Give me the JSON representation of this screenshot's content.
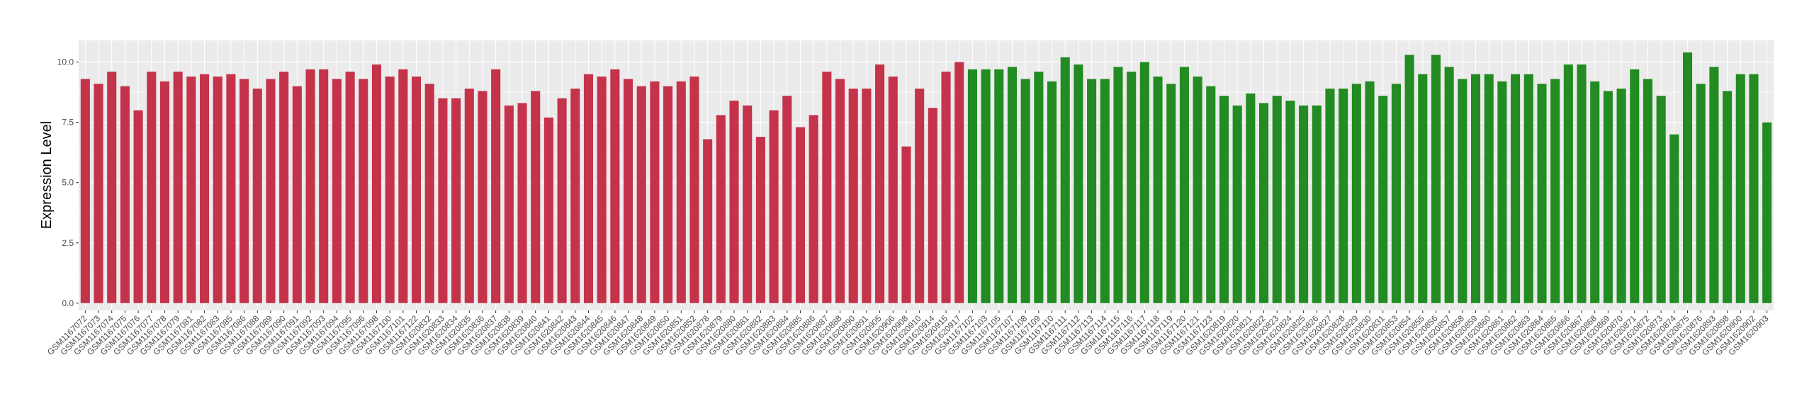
{
  "chart_data": {
    "type": "bar",
    "y_label": "Expression Level",
    "categories": [
      "GSM1167072",
      "GSM1167073",
      "GSM1167074",
      "GSM1167075",
      "GSM1167076",
      "GSM1167077",
      "GSM1167078",
      "GSM1167079",
      "GSM1167081",
      "GSM1167082",
      "GSM1167083",
      "GSM1167085",
      "GSM1167086",
      "GSM1167088",
      "GSM1167089",
      "GSM1167090",
      "GSM1167091",
      "GSM1167092",
      "GSM1167093",
      "GSM1167094",
      "GSM1167095",
      "GSM1167096",
      "GSM1167098",
      "GSM1167100",
      "GSM1167101",
      "GSM1167122",
      "GSM1620832",
      "GSM1620833",
      "GSM1620834",
      "GSM1620835",
      "GSM1620836",
      "GSM1620837",
      "GSM1620838",
      "GSM1620839",
      "GSM1620840",
      "GSM1620841",
      "GSM1620842",
      "GSM1620843",
      "GSM1620844",
      "GSM1620845",
      "GSM1620846",
      "GSM1620847",
      "GSM1620848",
      "GSM1620849",
      "GSM1620850",
      "GSM1620851",
      "GSM1620852",
      "GSM1620878",
      "GSM1620879",
      "GSM1620880",
      "GSM1620881",
      "GSM1620882",
      "GSM1620883",
      "GSM1620884",
      "GSM1620885",
      "GSM1620886",
      "GSM1620887",
      "GSM1620888",
      "GSM1620890",
      "GSM1620891",
      "GSM1620905",
      "GSM1620906",
      "GSM1620908",
      "GSM1620910",
      "GSM1620914",
      "GSM1620915",
      "GSM1620917",
      "GSM1167102",
      "GSM1167103",
      "GSM1167105",
      "GSM1167107",
      "GSM1167108",
      "GSM1167109",
      "GSM1167110",
      "GSM1167111",
      "GSM1167112",
      "GSM1167113",
      "GSM1167114",
      "GSM1167115",
      "GSM1167116",
      "GSM1167117",
      "GSM1167118",
      "GSM1167119",
      "GSM1167120",
      "GSM1167121",
      "GSM1167123",
      "GSM1620819",
      "GSM1620820",
      "GSM1620821",
      "GSM1620822",
      "GSM1620823",
      "GSM1620824",
      "GSM1620825",
      "GSM1620826",
      "GSM1620827",
      "GSM1620828",
      "GSM1620829",
      "GSM1620830",
      "GSM1620831",
      "GSM1620853",
      "GSM1620854",
      "GSM1620855",
      "GSM1620856",
      "GSM1620857",
      "GSM1620858",
      "GSM1620859",
      "GSM1620860",
      "GSM1620861",
      "GSM1620862",
      "GSM1620863",
      "GSM1620864",
      "GSM1620865",
      "GSM1620866",
      "GSM1620867",
      "GSM1620868",
      "GSM1620869",
      "GSM1620870",
      "GSM1620871",
      "GSM1620872",
      "GSM1620873",
      "GSM1620874",
      "GSM1620875",
      "GSM1620876",
      "GSM1620893",
      "GSM1620898",
      "GSM1620900",
      "GSM1620902",
      "GSM1620903"
    ],
    "series": [
      {
        "color": "#c4334a",
        "values": [
          9.3,
          9.1,
          9.6,
          9.0,
          8.0,
          9.6,
          9.2,
          9.6,
          9.4,
          9.5,
          9.4,
          9.5,
          9.3,
          8.9,
          9.3,
          9.6,
          9.0,
          9.7,
          9.7,
          9.3,
          9.6,
          9.3,
          9.9,
          9.4,
          9.7,
          9.4,
          9.1,
          8.5,
          8.5,
          8.9,
          8.8,
          9.7,
          8.2,
          8.3,
          8.8,
          7.7,
          8.5,
          8.9,
          9.5,
          9.4,
          9.7,
          9.3,
          9.0,
          9.2,
          9.0,
          9.2,
          9.4,
          6.8,
          7.8,
          8.4,
          8.2,
          6.9,
          8.0,
          8.6,
          7.3,
          7.8,
          9.6,
          9.3,
          8.9,
          8.9,
          9.9,
          9.4,
          6.5,
          8.9,
          8.1,
          9.6,
          10.0,
          null,
          null,
          null,
          null,
          null,
          null,
          null,
          null,
          null,
          null,
          null,
          null,
          null,
          null,
          null,
          null,
          null,
          null,
          null,
          null,
          null,
          null,
          null,
          null,
          null,
          null,
          null,
          null,
          null,
          null,
          null,
          null,
          null,
          null,
          null,
          null,
          null,
          null,
          null,
          null,
          null,
          null,
          null,
          null,
          null,
          null,
          null,
          null,
          null,
          null,
          null,
          null,
          null,
          null,
          null,
          null,
          null,
          null,
          null,
          null,
          null
        ]
      },
      {
        "color": "#228b22",
        "values": [
          null,
          null,
          null,
          null,
          null,
          null,
          null,
          null,
          null,
          null,
          null,
          null,
          null,
          null,
          null,
          null,
          null,
          null,
          null,
          null,
          null,
          null,
          null,
          null,
          null,
          null,
          null,
          null,
          null,
          null,
          null,
          null,
          null,
          null,
          null,
          null,
          null,
          null,
          null,
          null,
          null,
          null,
          null,
          null,
          null,
          null,
          null,
          null,
          null,
          null,
          null,
          null,
          null,
          null,
          null,
          null,
          null,
          null,
          null,
          null,
          null,
          null,
          null,
          null,
          null,
          null,
          null,
          9.7,
          9.7,
          9.7,
          9.8,
          9.3,
          9.6,
          9.2,
          10.2,
          9.9,
          9.3,
          9.3,
          9.8,
          9.6,
          10.0,
          9.4,
          9.1,
          9.8,
          9.4,
          9.0,
          8.6,
          8.2,
          8.7,
          8.3,
          8.6,
          8.4,
          8.2,
          8.2,
          8.9,
          8.9,
          9.1,
          9.2,
          8.6,
          9.1,
          10.3,
          9.5,
          10.3,
          9.8,
          9.3,
          9.5,
          9.5,
          9.2,
          9.5,
          9.5,
          9.1,
          9.3,
          9.9,
          9.9,
          9.2,
          8.8,
          8.9,
          9.7,
          9.3,
          8.6,
          7.0,
          10.4,
          9.1,
          9.8,
          8.8,
          9.5,
          9.5,
          7.5
        ]
      }
    ],
    "ylim": [
      -0.3,
      10.9
    ],
    "yticks": [
      {
        "value": 0,
        "label": "0.0"
      },
      {
        "value": 2.5,
        "label": "2.5"
      },
      {
        "value": 5,
        "label": "5.0"
      },
      {
        "value": 7.5,
        "label": "7.5"
      },
      {
        "value": 10,
        "label": "10.0"
      }
    ],
    "grid": true
  }
}
